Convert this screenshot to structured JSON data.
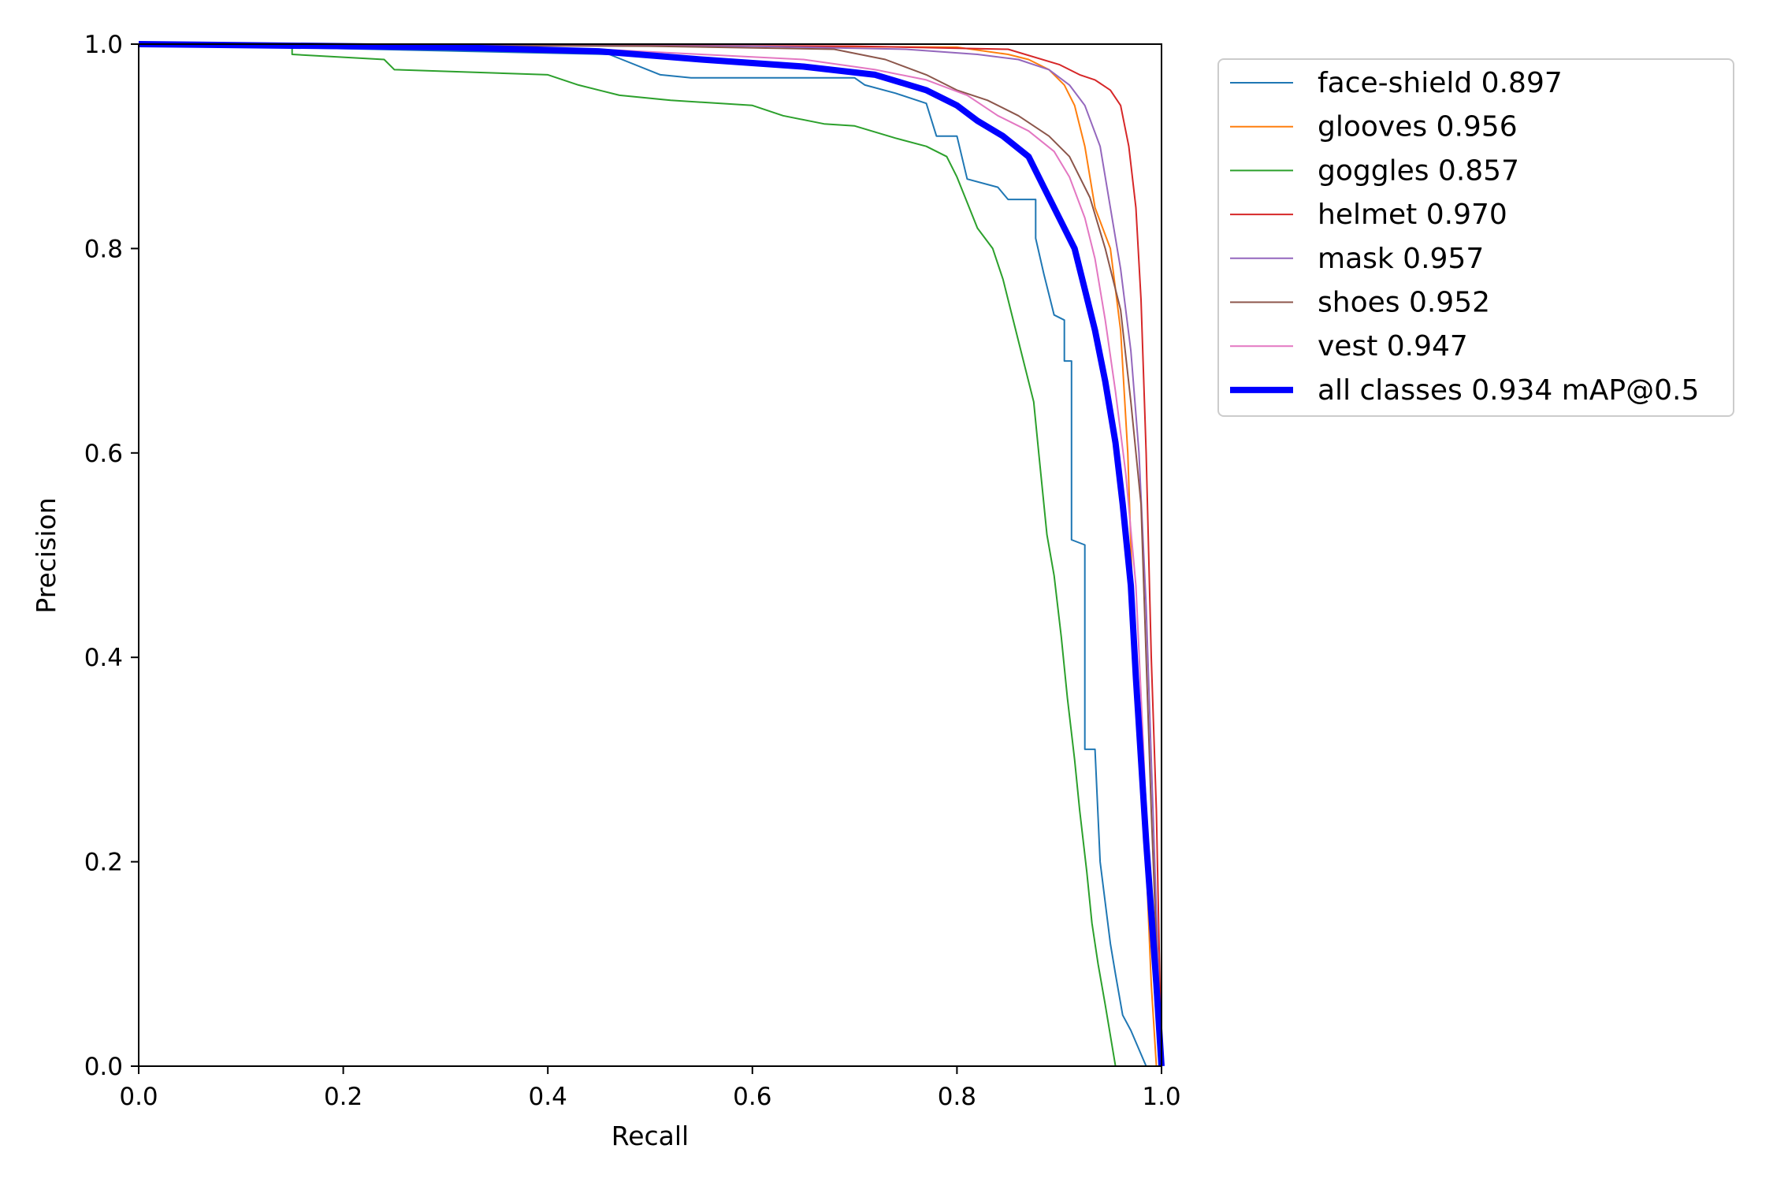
{
  "chart_data": {
    "type": "line",
    "xlabel": "Recall",
    "ylabel": "Precision",
    "xlim": [
      0,
      1
    ],
    "ylim": [
      0,
      1
    ],
    "xticks": [
      "0.0",
      "0.2",
      "0.4",
      "0.6",
      "0.8",
      "1.0"
    ],
    "yticks": [
      "0.0",
      "0.2",
      "0.4",
      "0.6",
      "0.8",
      "1.0"
    ],
    "grid": false,
    "legend_position": "outside-top-right",
    "series": [
      {
        "name": "face-shield 0.897",
        "color": "#1f77b4",
        "emphasis": false,
        "points": [
          [
            0,
            1.0
          ],
          [
            0.46,
            0.99
          ],
          [
            0.51,
            0.97
          ],
          [
            0.54,
            0.967
          ],
          [
            0.7,
            0.967
          ],
          [
            0.71,
            0.96
          ],
          [
            0.74,
            0.952
          ],
          [
            0.77,
            0.942
          ],
          [
            0.78,
            0.91
          ],
          [
            0.8,
            0.91
          ],
          [
            0.81,
            0.868
          ],
          [
            0.84,
            0.86
          ],
          [
            0.85,
            0.848
          ],
          [
            0.877,
            0.848
          ],
          [
            0.877,
            0.81
          ],
          [
            0.885,
            0.775
          ],
          [
            0.895,
            0.735
          ],
          [
            0.905,
            0.73
          ],
          [
            0.905,
            0.69
          ],
          [
            0.912,
            0.69
          ],
          [
            0.912,
            0.515
          ],
          [
            0.925,
            0.51
          ],
          [
            0.925,
            0.31
          ],
          [
            0.935,
            0.31
          ],
          [
            0.94,
            0.2
          ],
          [
            0.95,
            0.12
          ],
          [
            0.955,
            0.09
          ],
          [
            0.962,
            0.05
          ],
          [
            0.97,
            0.035
          ],
          [
            0.985,
            0.0
          ]
        ]
      },
      {
        "name": "glooves 0.956",
        "color": "#ff7f0e",
        "emphasis": false,
        "points": [
          [
            0,
            1.0
          ],
          [
            0.6,
            0.998
          ],
          [
            0.8,
            0.997
          ],
          [
            0.85,
            0.99
          ],
          [
            0.87,
            0.985
          ],
          [
            0.89,
            0.975
          ],
          [
            0.905,
            0.96
          ],
          [
            0.915,
            0.94
          ],
          [
            0.925,
            0.9
          ],
          [
            0.935,
            0.84
          ],
          [
            0.95,
            0.8
          ],
          [
            0.96,
            0.72
          ],
          [
            0.967,
            0.6
          ],
          [
            0.972,
            0.45
          ],
          [
            0.978,
            0.32
          ],
          [
            0.985,
            0.2
          ],
          [
            0.99,
            0.08
          ],
          [
            0.995,
            0.0
          ]
        ]
      },
      {
        "name": "goggles 0.857",
        "color": "#2ca02c",
        "emphasis": false,
        "points": [
          [
            0,
            1.0
          ],
          [
            0.15,
            1.0
          ],
          [
            0.15,
            0.99
          ],
          [
            0.24,
            0.985
          ],
          [
            0.25,
            0.975
          ],
          [
            0.4,
            0.97
          ],
          [
            0.43,
            0.96
          ],
          [
            0.47,
            0.95
          ],
          [
            0.52,
            0.945
          ],
          [
            0.6,
            0.94
          ],
          [
            0.63,
            0.93
          ],
          [
            0.67,
            0.922
          ],
          [
            0.7,
            0.92
          ],
          [
            0.74,
            0.908
          ],
          [
            0.77,
            0.9
          ],
          [
            0.79,
            0.89
          ],
          [
            0.8,
            0.87
          ],
          [
            0.81,
            0.845
          ],
          [
            0.82,
            0.82
          ],
          [
            0.835,
            0.8
          ],
          [
            0.845,
            0.77
          ],
          [
            0.855,
            0.73
          ],
          [
            0.865,
            0.69
          ],
          [
            0.875,
            0.65
          ],
          [
            0.88,
            0.6
          ],
          [
            0.888,
            0.52
          ],
          [
            0.895,
            0.48
          ],
          [
            0.902,
            0.42
          ],
          [
            0.908,
            0.36
          ],
          [
            0.915,
            0.3
          ],
          [
            0.92,
            0.25
          ],
          [
            0.927,
            0.19
          ],
          [
            0.932,
            0.14
          ],
          [
            0.938,
            0.1
          ],
          [
            0.945,
            0.06
          ],
          [
            0.955,
            0.0
          ]
        ]
      },
      {
        "name": "helmet 0.970",
        "color": "#d62728",
        "emphasis": false,
        "points": [
          [
            0,
            1.0
          ],
          [
            0.7,
            0.998
          ],
          [
            0.85,
            0.995
          ],
          [
            0.9,
            0.98
          ],
          [
            0.92,
            0.97
          ],
          [
            0.935,
            0.965
          ],
          [
            0.95,
            0.955
          ],
          [
            0.96,
            0.94
          ],
          [
            0.968,
            0.9
          ],
          [
            0.975,
            0.84
          ],
          [
            0.98,
            0.75
          ],
          [
            0.985,
            0.6
          ],
          [
            0.99,
            0.4
          ],
          [
            0.995,
            0.25
          ],
          [
            1.0,
            0.0
          ]
        ]
      },
      {
        "name": "mask 0.957",
        "color": "#9467bd",
        "emphasis": false,
        "points": [
          [
            0,
            1.0
          ],
          [
            0.6,
            0.998
          ],
          [
            0.75,
            0.995
          ],
          [
            0.82,
            0.99
          ],
          [
            0.86,
            0.985
          ],
          [
            0.89,
            0.975
          ],
          [
            0.91,
            0.96
          ],
          [
            0.925,
            0.94
          ],
          [
            0.94,
            0.9
          ],
          [
            0.95,
            0.84
          ],
          [
            0.96,
            0.78
          ],
          [
            0.97,
            0.7
          ],
          [
            0.978,
            0.6
          ],
          [
            0.985,
            0.45
          ],
          [
            0.99,
            0.3
          ],
          [
            0.995,
            0.15
          ],
          [
            1.0,
            0.0
          ]
        ]
      },
      {
        "name": "shoes 0.952",
        "color": "#8c564b",
        "emphasis": false,
        "points": [
          [
            0,
            1.0
          ],
          [
            0.5,
            0.998
          ],
          [
            0.68,
            0.995
          ],
          [
            0.73,
            0.985
          ],
          [
            0.77,
            0.97
          ],
          [
            0.8,
            0.955
          ],
          [
            0.83,
            0.945
          ],
          [
            0.86,
            0.93
          ],
          [
            0.89,
            0.91
          ],
          [
            0.91,
            0.89
          ],
          [
            0.93,
            0.85
          ],
          [
            0.945,
            0.8
          ],
          [
            0.96,
            0.74
          ],
          [
            0.97,
            0.65
          ],
          [
            0.98,
            0.55
          ],
          [
            0.985,
            0.4
          ],
          [
            0.99,
            0.25
          ],
          [
            0.995,
            0.12
          ],
          [
            1.0,
            0.0
          ]
        ]
      },
      {
        "name": "vest 0.947",
        "color": "#e377c2",
        "emphasis": false,
        "points": [
          [
            0,
            1.0
          ],
          [
            0.45,
            0.995
          ],
          [
            0.55,
            0.99
          ],
          [
            0.65,
            0.985
          ],
          [
            0.72,
            0.975
          ],
          [
            0.77,
            0.965
          ],
          [
            0.81,
            0.95
          ],
          [
            0.84,
            0.93
          ],
          [
            0.87,
            0.915
          ],
          [
            0.895,
            0.895
          ],
          [
            0.91,
            0.87
          ],
          [
            0.925,
            0.83
          ],
          [
            0.935,
            0.79
          ],
          [
            0.945,
            0.73
          ],
          [
            0.955,
            0.66
          ],
          [
            0.965,
            0.58
          ],
          [
            0.975,
            0.47
          ],
          [
            0.982,
            0.32
          ],
          [
            0.988,
            0.18
          ],
          [
            0.994,
            0.06
          ],
          [
            1.0,
            0.0
          ]
        ]
      },
      {
        "name": "all classes 0.934 mAP@0.5",
        "color": "#0000ff",
        "emphasis": true,
        "points": [
          [
            0,
            1.0
          ],
          [
            0.3,
            0.997
          ],
          [
            0.45,
            0.993
          ],
          [
            0.55,
            0.985
          ],
          [
            0.65,
            0.978
          ],
          [
            0.72,
            0.97
          ],
          [
            0.77,
            0.955
          ],
          [
            0.8,
            0.94
          ],
          [
            0.82,
            0.925
          ],
          [
            0.845,
            0.91
          ],
          [
            0.87,
            0.89
          ],
          [
            0.885,
            0.86
          ],
          [
            0.9,
            0.83
          ],
          [
            0.915,
            0.8
          ],
          [
            0.925,
            0.76
          ],
          [
            0.935,
            0.72
          ],
          [
            0.945,
            0.67
          ],
          [
            0.955,
            0.61
          ],
          [
            0.962,
            0.55
          ],
          [
            0.97,
            0.47
          ],
          [
            0.975,
            0.38
          ],
          [
            0.98,
            0.3
          ],
          [
            0.985,
            0.22
          ],
          [
            0.99,
            0.15
          ],
          [
            0.995,
            0.08
          ],
          [
            1.0,
            0.0
          ]
        ]
      }
    ]
  }
}
